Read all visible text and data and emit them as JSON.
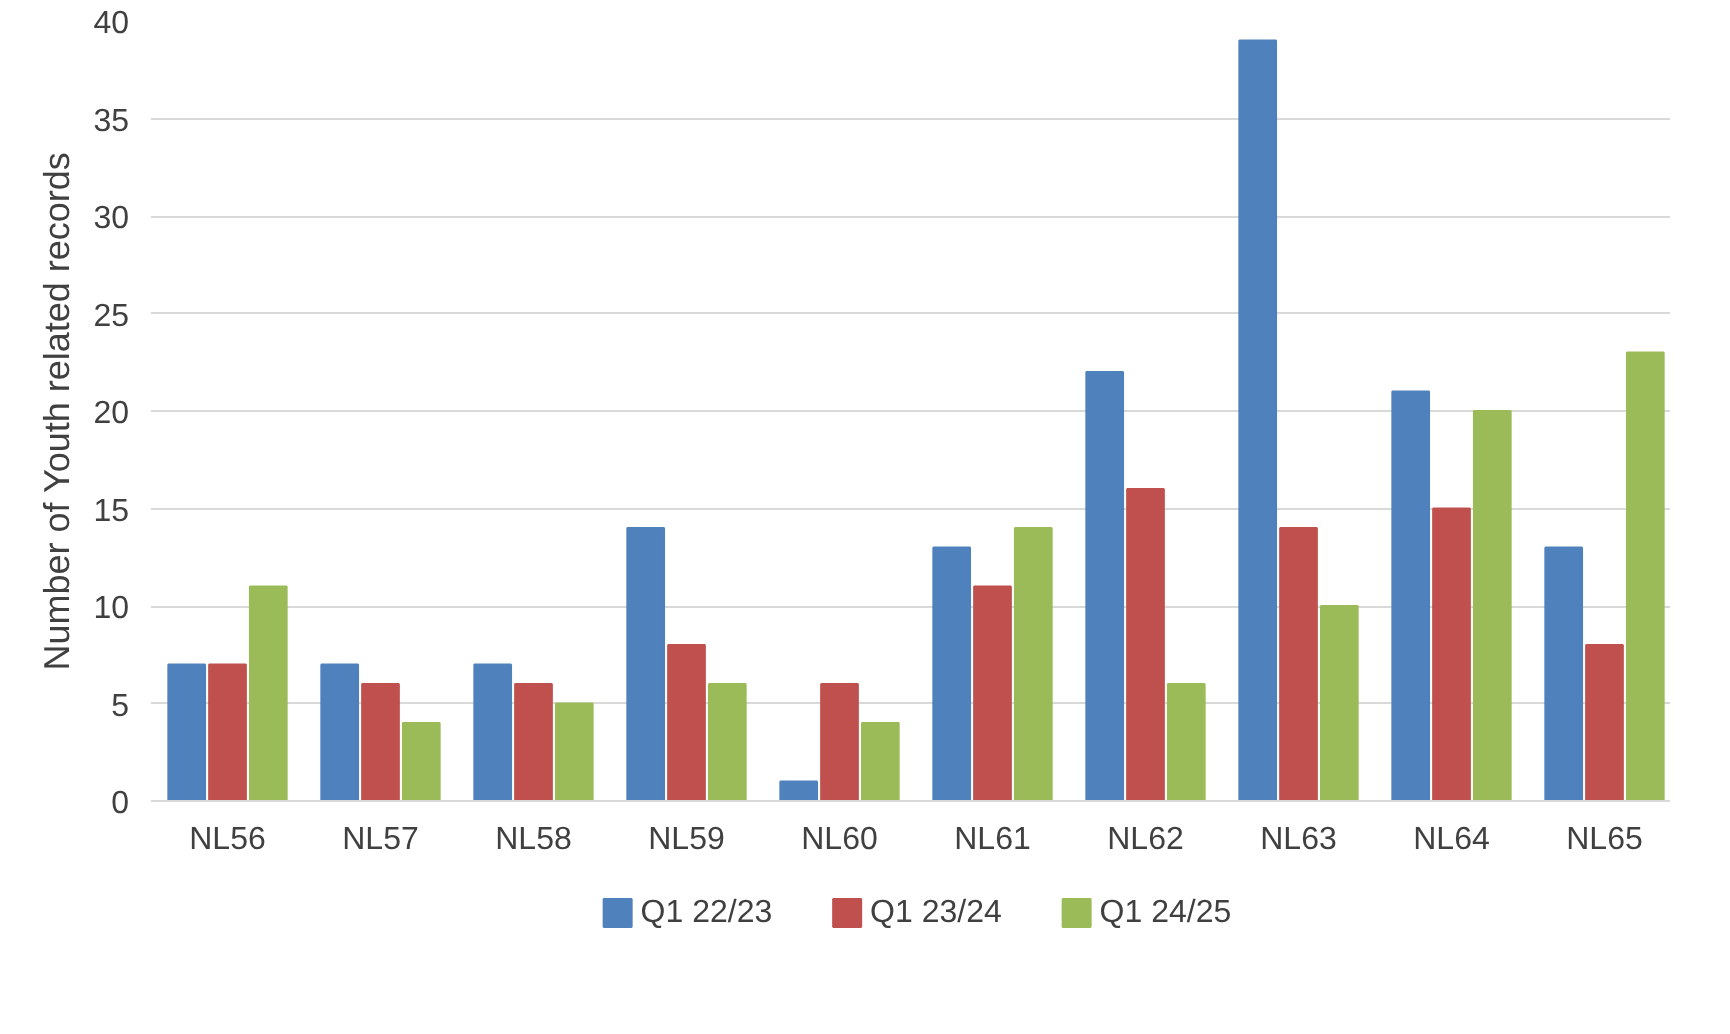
{
  "chart_data": {
    "type": "bar",
    "ylabel": "Number of Youth related records",
    "categories": [
      "NL56",
      "NL57",
      "NL58",
      "NL59",
      "NL60",
      "NL61",
      "NL62",
      "NL63",
      "NL64",
      "NL65"
    ],
    "series": [
      {
        "name": "Q1 22/23",
        "color": "#4f81bd",
        "values": [
          7,
          7,
          7,
          14,
          1,
          13,
          22,
          39,
          21,
          13
        ]
      },
      {
        "name": "Q1 23/24",
        "color": "#c0504d",
        "values": [
          7,
          6,
          6,
          8,
          6,
          11,
          16,
          14,
          15,
          8
        ]
      },
      {
        "name": "Q1 24/25",
        "color": "#9bbb59",
        "values": [
          11,
          4,
          5,
          6,
          4,
          14,
          6,
          10,
          20,
          23
        ]
      }
    ],
    "ylim": [
      0,
      40
    ],
    "yticks": [
      0,
      5,
      10,
      15,
      20,
      25,
      30,
      35,
      40
    ],
    "grid": "y",
    "legend": "bottom"
  }
}
